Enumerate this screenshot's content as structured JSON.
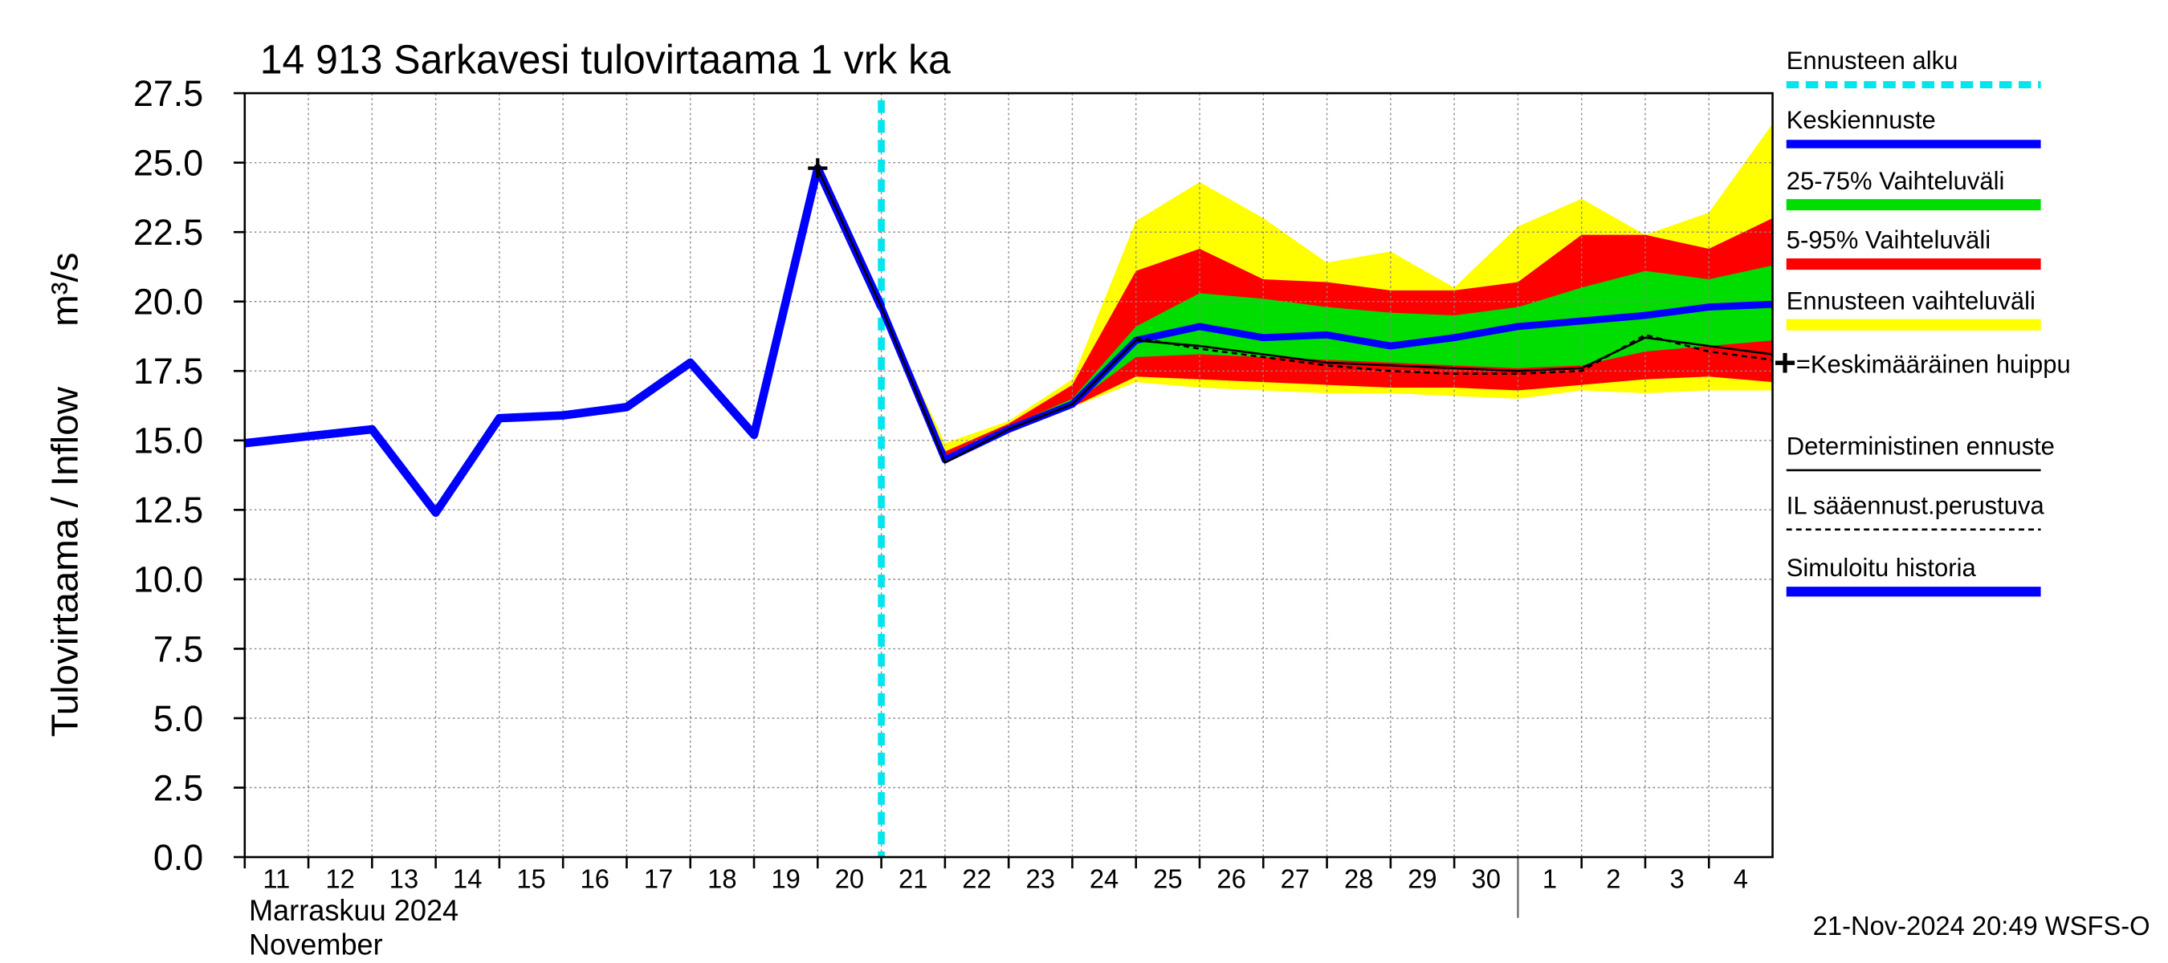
{
  "chart_data": {
    "type": "line",
    "title": "14 913 Sarkavesi tulovirtaama 1 vrk ka",
    "y_label": "Tulovirtaama / Inflow",
    "y_unit": "m³/s",
    "x_labels": [
      "Marraskuu 2024",
      "November"
    ],
    "footer": "21-Nov-2024 20:49 WSFS-O",
    "grid": true,
    "xlim": [
      0,
      24
    ],
    "xticks": [
      {
        "value": 0,
        "label": "11"
      },
      {
        "value": 1,
        "label": "12"
      },
      {
        "value": 2,
        "label": "13"
      },
      {
        "value": 3,
        "label": "14"
      },
      {
        "value": 4,
        "label": "15"
      },
      {
        "value": 5,
        "label": "16"
      },
      {
        "value": 6,
        "label": "17"
      },
      {
        "value": 7,
        "label": "18"
      },
      {
        "value": 8,
        "label": "19"
      },
      {
        "value": 9,
        "label": "20"
      },
      {
        "value": 10,
        "label": "21"
      },
      {
        "value": 11,
        "label": "22"
      },
      {
        "value": 12,
        "label": "23"
      },
      {
        "value": 13,
        "label": "24"
      },
      {
        "value": 14,
        "label": "25"
      },
      {
        "value": 15,
        "label": "26"
      },
      {
        "value": 16,
        "label": "27"
      },
      {
        "value": 17,
        "label": "28"
      },
      {
        "value": 18,
        "label": "29"
      },
      {
        "value": 19,
        "label": "30"
      },
      {
        "value": 20,
        "label": "1"
      },
      {
        "value": 21,
        "label": "2"
      },
      {
        "value": 22,
        "label": "3"
      },
      {
        "value": 23,
        "label": "4"
      }
    ],
    "ylim": [
      0,
      27.5
    ],
    "yticks": [
      {
        "value": 0,
        "label": "0.0"
      },
      2.5,
      {
        "value": 5,
        "label": "5.0"
      },
      7.5,
      {
        "value": 10,
        "label": "10.0"
      },
      12.5,
      {
        "value": 15,
        "label": "15.0"
      },
      17.5,
      {
        "value": 20,
        "label": "20.0"
      },
      22.5,
      {
        "value": 25,
        "label": "25.0"
      },
      27.5
    ],
    "forecast_start": 10,
    "forecast_start_label": "Ennusteen alku",
    "forecast_start_color": "#00e5ee",
    "bands": [
      {
        "name": "Ennusteen vaihteluväli",
        "color": "#ffff00",
        "x": [
          10,
          11,
          12,
          13,
          14,
          15,
          16,
          17,
          18,
          19,
          20,
          21,
          22,
          23,
          24
        ],
        "upper": [
          19.8,
          14.9,
          15.7,
          17.2,
          22.9,
          24.3,
          23.0,
          21.4,
          21.8,
          20.5,
          22.7,
          23.7,
          22.4,
          23.2,
          26.4
        ],
        "lower": [
          19.8,
          14.2,
          15.4,
          16.2,
          17.1,
          16.9,
          16.8,
          16.7,
          16.7,
          16.6,
          16.5,
          16.8,
          16.7,
          16.8,
          16.8
        ]
      },
      {
        "name": "5-95% Vaihteluväli",
        "color": "#ff0000",
        "x": [
          10,
          11,
          12,
          13,
          14,
          15,
          16,
          17,
          18,
          19,
          20,
          21,
          22,
          23,
          24
        ],
        "upper": [
          19.8,
          14.6,
          15.6,
          17.0,
          21.1,
          21.9,
          20.8,
          20.7,
          20.4,
          20.4,
          20.7,
          22.4,
          22.4,
          21.9,
          23.0
        ],
        "lower": [
          19.8,
          14.2,
          15.4,
          16.2,
          17.3,
          17.2,
          17.1,
          17.0,
          16.9,
          16.9,
          16.8,
          17.0,
          17.2,
          17.3,
          17.1
        ]
      },
      {
        "name": "25-75% Vaihteluväli",
        "color": "#00dd00",
        "x": [
          10,
          11,
          12,
          13,
          14,
          15,
          16,
          17,
          18,
          19,
          20,
          21,
          22,
          23,
          24
        ],
        "upper": [
          19.8,
          14.4,
          15.5,
          16.5,
          19.1,
          20.3,
          20.1,
          19.8,
          19.6,
          19.5,
          19.8,
          20.5,
          21.1,
          20.8,
          21.3
        ],
        "lower": [
          19.8,
          14.3,
          15.4,
          16.3,
          18.0,
          18.1,
          18.0,
          17.9,
          17.8,
          17.7,
          17.6,
          17.7,
          18.2,
          18.4,
          18.6
        ]
      }
    ],
    "series": [
      {
        "name": "Simuloitu historia",
        "color": "#0000ff",
        "width": 6,
        "dash": "none",
        "x": [
          0,
          1,
          2,
          3,
          4,
          5,
          6,
          7,
          8,
          9,
          10
        ],
        "values": [
          14.9,
          15.15,
          15.4,
          12.4,
          15.8,
          15.9,
          16.2,
          17.8,
          15.2,
          24.8,
          19.8
        ]
      },
      {
        "name": "Keskiennuste",
        "color": "#0000ff",
        "width": 5,
        "dash": "none",
        "x": [
          9,
          10,
          11,
          12,
          13,
          14,
          15,
          16,
          17,
          18,
          19,
          20,
          21,
          22,
          23,
          24
        ],
        "values": [
          24.8,
          19.8,
          14.3,
          15.4,
          16.3,
          18.6,
          19.1,
          18.7,
          18.8,
          18.4,
          18.7,
          19.1,
          19.3,
          19.5,
          19.8,
          19.9
        ]
      },
      {
        "name": "Deterministinen ennuste",
        "color": "#000000",
        "width": 1.5,
        "dash": "none",
        "x": [
          9,
          10,
          11,
          12,
          13,
          14,
          15,
          16,
          17,
          18,
          19,
          20,
          21,
          22,
          23,
          24
        ],
        "values": [
          24.8,
          19.8,
          14.2,
          15.4,
          16.3,
          18.6,
          18.4,
          18.1,
          17.8,
          17.7,
          17.6,
          17.5,
          17.6,
          18.7,
          18.4,
          18.1
        ]
      },
      {
        "name": "IL sääennust.perustuva",
        "color": "#000000",
        "width": 1.5,
        "dash": "4 3",
        "x": [
          14,
          15,
          16,
          17,
          18,
          19,
          20,
          21,
          22,
          23,
          24
        ],
        "values": [
          18.7,
          18.3,
          18.0,
          17.7,
          17.5,
          17.4,
          17.4,
          17.5,
          18.8,
          18.2,
          17.9
        ]
      }
    ],
    "peak": {
      "name": "=Keskimääräinen huippu",
      "color": "#000000",
      "x": [
        9
      ],
      "values": [
        24.8
      ]
    }
  }
}
